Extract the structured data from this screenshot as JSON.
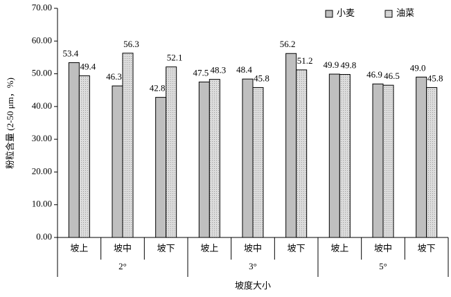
{
  "chart_data": {
    "type": "bar",
    "y_label": "粉粒含量 (2-50 μm，%)",
    "x_label": "坡度大小",
    "categories": [
      "坡上",
      "坡中",
      "坡下",
      "坡上",
      "坡中",
      "坡下",
      "坡上",
      "坡中",
      "坡下"
    ],
    "groups": [
      "2°",
      "3°",
      "5°"
    ],
    "series": [
      {
        "name": "小麦",
        "color": "#bfbfbf",
        "values": [
          53.4,
          46.3,
          42.8,
          47.5,
          48.4,
          56.2,
          49.9,
          46.9,
          49.0
        ],
        "value_labels": [
          "53.4",
          "46.3",
          "42.8",
          "47.5",
          "48.4",
          "56.2",
          "49.9",
          "46.9",
          "49.0"
        ]
      },
      {
        "name": "油菜",
        "color": "#dcdcdc",
        "values": [
          49.4,
          56.3,
          52.1,
          48.3,
          45.8,
          51.2,
          49.8,
          46.5,
          45.8
        ],
        "value_labels": [
          "49.4",
          "56.3",
          "52.1",
          "48.3",
          "45.8",
          "51.2",
          "49.8",
          "46.5",
          "45.8"
        ]
      }
    ],
    "ylim": [
      0,
      70
    ],
    "yticks": [
      {
        "value": 0,
        "label": "0.00"
      },
      {
        "value": 10,
        "label": "10.00"
      },
      {
        "value": 20,
        "label": "20.00"
      },
      {
        "value": 30,
        "label": "30.00"
      },
      {
        "value": 40,
        "label": "40.00"
      },
      {
        "value": 50,
        "label": "50.00"
      },
      {
        "value": 60,
        "label": "60.00"
      },
      {
        "value": 70,
        "label": "70.00"
      }
    ],
    "grid": false,
    "legend": "top-right"
  }
}
